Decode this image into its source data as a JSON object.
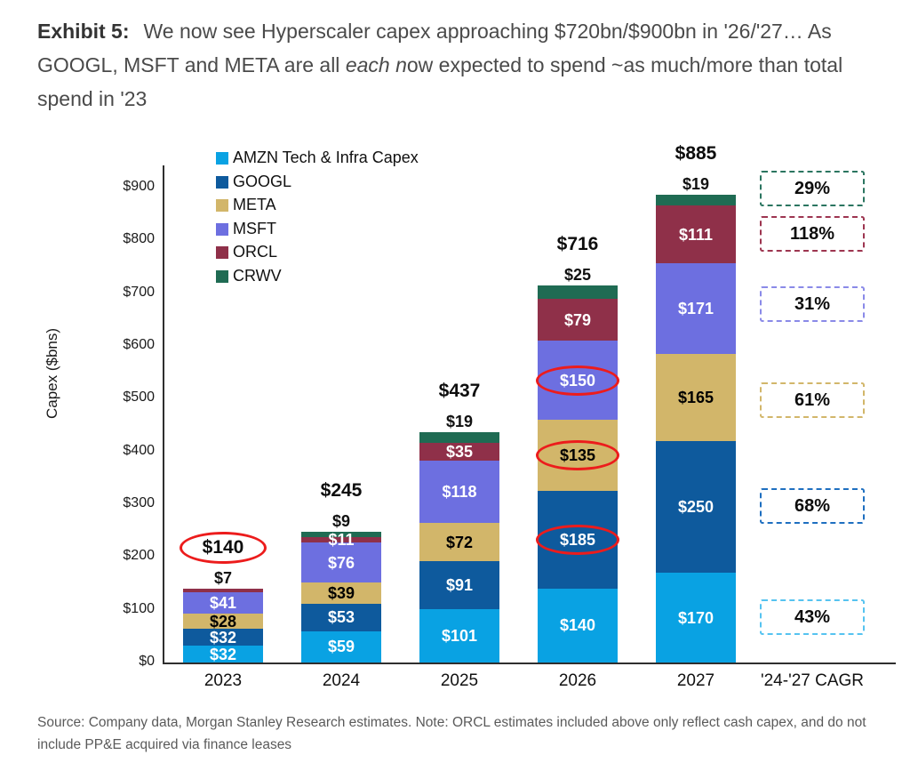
{
  "header": {
    "exhibit_label": "Exhibit 5:",
    "title_before_italic": "We now see Hyperscaler capex approaching $720bn/$900bn in '26/'27… As GOOGL, MSFT and META are all ",
    "title_italic": "each n",
    "title_after_italic": "ow expected to spend ~as much/more than total spend in '23"
  },
  "footer": {
    "source_note": "Source: Company data, Morgan Stanley Research estimates. Note: ORCL estimates included above only reflect cash capex, and do not include PP&E acquired via finance leases"
  },
  "chart_data": {
    "type": "bar",
    "stacked": true,
    "title": "Exhibit 5: We now see Hyperscaler capex approaching $720bn/$900bn in '26/'27… As GOOGL, MSFT and META are all each now expected to spend ~as much/more than total spend in '23",
    "ylabel": "Capex ($bns)",
    "ylim": [
      0,
      900
    ],
    "ytick_step": 100,
    "grid": false,
    "legend_position": "top-left-inside",
    "categories": [
      "2023",
      "2024",
      "2025",
      "2026",
      "2027"
    ],
    "cagr_category": "'24-'27 CAGR",
    "series": [
      {
        "id": "amzn",
        "name": "AMZN Tech & Infra Capex",
        "color": "#09A2E3",
        "label_color": "#ffffff",
        "values": [
          32,
          59,
          101,
          140,
          170
        ],
        "cagr": "43%",
        "cagr_color": "#55C3F0"
      },
      {
        "id": "googl",
        "name": "GOOGL",
        "color": "#0E5A9D",
        "label_color": "#ffffff",
        "values": [
          32,
          53,
          91,
          185,
          250
        ],
        "cagr": "68%",
        "cagr_color": "#1E6FC0"
      },
      {
        "id": "meta",
        "name": "META",
        "color": "#D2B66A",
        "label_color": "#000000",
        "values": [
          28,
          39,
          72,
          135,
          165
        ],
        "cagr": "61%",
        "cagr_color": "#D2B66A"
      },
      {
        "id": "msft",
        "name": "MSFT",
        "color": "#6D6FE0",
        "label_color": "#ffffff",
        "values": [
          41,
          76,
          118,
          150,
          171
        ],
        "cagr": "31%",
        "cagr_color": "#8A8AE8"
      },
      {
        "id": "orcl",
        "name": "ORCL",
        "color": "#8F3049",
        "label_color": "#ffffff",
        "values": [
          7,
          11,
          35,
          79,
          111
        ],
        "cagr": "118%",
        "cagr_color": "#9D3550"
      },
      {
        "id": "crwv",
        "name": "CRWV",
        "color": "#1F6B53",
        "label_color": "#ffffff",
        "values": [
          0,
          9,
          19,
          25,
          19
        ],
        "cagr": "29%",
        "cagr_color": "#2B7560"
      }
    ],
    "totals": [
      "$140",
      "$245",
      "$437",
      "$716",
      "$885"
    ],
    "above_bar_labels": [
      {
        "year": "2023",
        "series_id": "orcl",
        "text": "$7"
      },
      {
        "year": "2024",
        "series_id": "crwv",
        "text": "$9"
      },
      {
        "year": "2025",
        "series_id": "crwv",
        "text": "$19"
      },
      {
        "year": "2026",
        "series_id": "crwv",
        "text": "$25"
      },
      {
        "year": "2027",
        "series_id": "crwv",
        "text": "$19"
      }
    ],
    "circled_total_year": "2023",
    "circled_segments": [
      {
        "year": "2026",
        "series_id": "msft"
      },
      {
        "year": "2026",
        "series_id": "meta"
      },
      {
        "year": "2026",
        "series_id": "googl"
      }
    ],
    "highlight_color": "#EC1C1C"
  }
}
